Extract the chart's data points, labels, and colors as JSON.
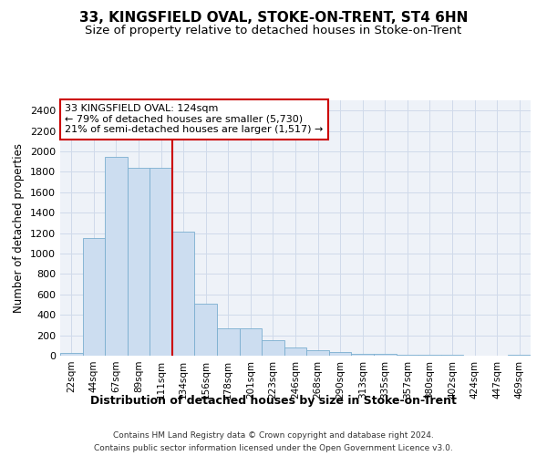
{
  "title": "33, KINGSFIELD OVAL, STOKE-ON-TRENT, ST4 6HN",
  "subtitle": "Size of property relative to detached houses in Stoke-on-Trent",
  "xlabel": "Distribution of detached houses by size in Stoke-on-Trent",
  "ylabel": "Number of detached properties",
  "categories": [
    "22sqm",
    "44sqm",
    "67sqm",
    "89sqm",
    "111sqm",
    "134sqm",
    "156sqm",
    "178sqm",
    "201sqm",
    "223sqm",
    "246sqm",
    "268sqm",
    "290sqm",
    "313sqm",
    "335sqm",
    "357sqm",
    "380sqm",
    "402sqm",
    "424sqm",
    "447sqm",
    "469sqm"
  ],
  "values": [
    25,
    1150,
    1950,
    1840,
    1840,
    1210,
    510,
    270,
    265,
    150,
    80,
    50,
    35,
    15,
    15,
    10,
    8,
    5,
    3,
    2,
    10
  ],
  "bar_color": "#ccddf0",
  "bar_edge_color": "#7aaed0",
  "vline_x": 4.5,
  "annotation_line1": "33 KINGSFIELD OVAL: 124sqm",
  "annotation_line2": "← 79% of detached houses are smaller (5,730)",
  "annotation_line3": "21% of semi-detached houses are larger (1,517) →",
  "annotation_box_color": "#ffffff",
  "annotation_box_edge": "#cc0000",
  "vline_color": "#cc0000",
  "ylim": [
    0,
    2500
  ],
  "yticks": [
    0,
    200,
    400,
    600,
    800,
    1000,
    1200,
    1400,
    1600,
    1800,
    2000,
    2200,
    2400
  ],
  "grid_color": "#d0daea",
  "bg_color": "#eef2f8",
  "footnote1": "Contains HM Land Registry data © Crown copyright and database right 2024.",
  "footnote2": "Contains public sector information licensed under the Open Government Licence v3.0."
}
